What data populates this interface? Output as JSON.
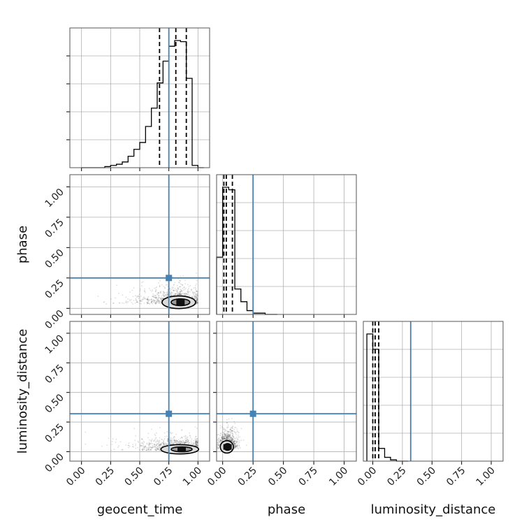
{
  "chart_data": {
    "type": "corner",
    "parameters": [
      "geocent_time",
      "phase",
      "luminosity_distance"
    ],
    "xlabels": [
      "geocent_time",
      "phase",
      "luminosity_distance"
    ],
    "ylabels": [
      "",
      "phase",
      "luminosity_distance"
    ],
    "tick_values": [
      0.0,
      0.25,
      0.5,
      0.75,
      1.0
    ],
    "tick_labels": [
      "0.00",
      "0.25",
      "0.50",
      "0.75",
      "1.00"
    ],
    "truths": {
      "geocent_time": 0.75,
      "phase": 0.25,
      "luminosity_distance": 0.32
    },
    "truth_color": "#4682b4",
    "grid": true,
    "limits": {
      "geocent_time": [
        -0.1,
        1.1
      ],
      "phase": [
        -0.05,
        1.1
      ],
      "luminosity_distance": [
        -0.08,
        1.1
      ]
    },
    "histograms": [
      {
        "parameter": "geocent_time",
        "bin_edges": [
          0.0,
          0.05,
          0.1,
          0.15,
          0.2,
          0.25,
          0.3,
          0.35,
          0.4,
          0.45,
          0.5,
          0.55,
          0.6,
          0.65,
          0.7,
          0.75,
          0.8,
          0.85,
          0.9,
          0.95,
          1.0,
          1.05
        ],
        "counts": [
          0,
          0,
          0,
          0,
          1,
          2,
          3,
          5,
          10,
          16,
          22,
          36,
          52,
          74,
          93,
          106,
          111,
          110,
          78,
          2,
          0
        ],
        "quantiles": [
          0.67,
          0.81,
          0.9
        ]
      },
      {
        "parameter": "phase",
        "bin_edges": [
          -0.05,
          0.0,
          0.05,
          0.1,
          0.15,
          0.2,
          0.25,
          0.3,
          0.35,
          0.4,
          0.45
        ],
        "counts": [
          45,
          100,
          98,
          20,
          10,
          3,
          1,
          1,
          0,
          0
        ],
        "quantiles": [
          0.01,
          0.03,
          0.08
        ]
      },
      {
        "parameter": "luminosity_distance",
        "bin_edges": [
          -0.05,
          0.0,
          0.05,
          0.1,
          0.15,
          0.2,
          0.25,
          0.3
        ],
        "counts": [
          100,
          88,
          10,
          3,
          1,
          0,
          0
        ],
        "quantiles": [
          0.0,
          0.02,
          0.05
        ]
      }
    ],
    "scatter_pairs": [
      {
        "x": "geocent_time",
        "y": "phase",
        "center": [
          0.85,
          0.05
        ],
        "spread": [
          0.08,
          0.04
        ]
      },
      {
        "x": "geocent_time",
        "y": "luminosity_distance",
        "center": [
          0.86,
          0.02
        ],
        "spread": [
          0.09,
          0.03
        ]
      },
      {
        "x": "phase",
        "y": "luminosity_distance",
        "center": [
          0.04,
          0.04
        ],
        "spread": [
          0.03,
          0.04
        ]
      }
    ]
  }
}
